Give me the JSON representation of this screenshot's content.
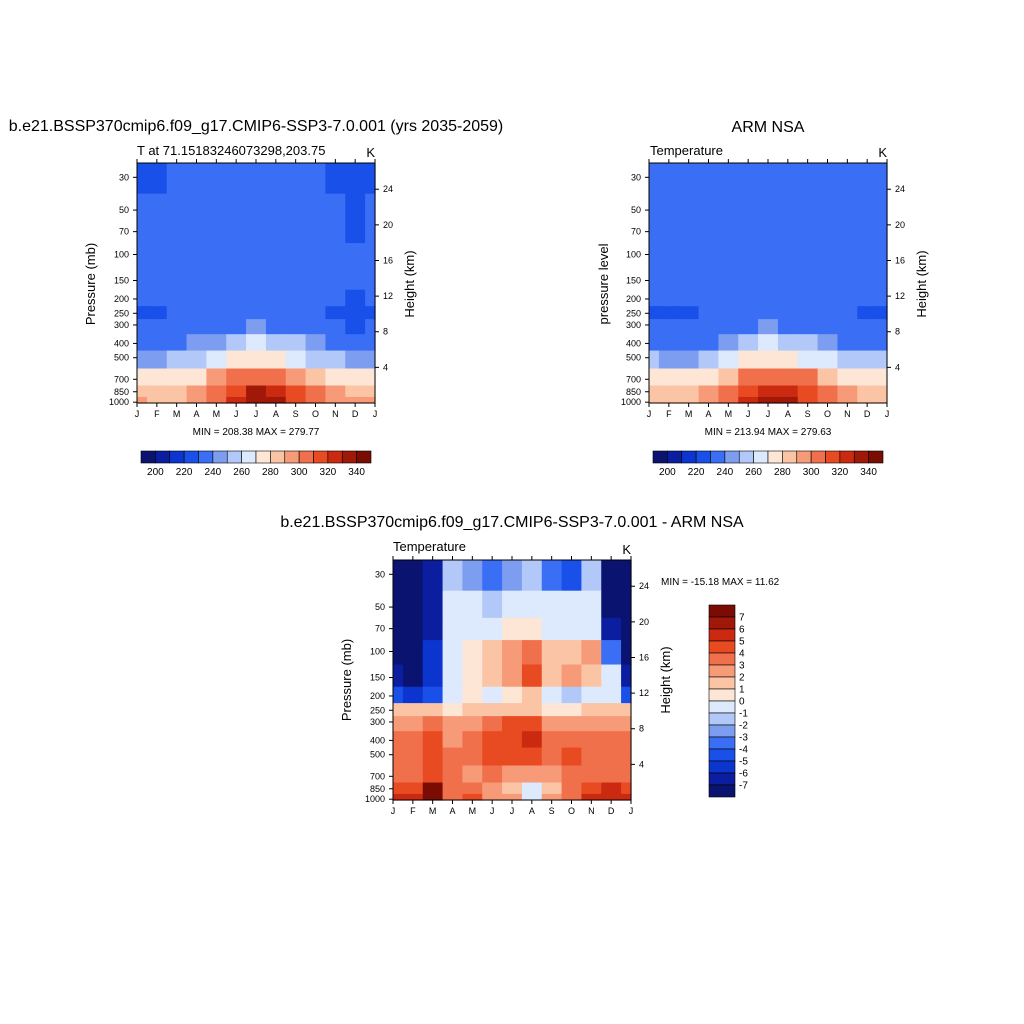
{
  "months": [
    "J",
    "F",
    "M",
    "A",
    "M",
    "J",
    "J",
    "A",
    "S",
    "O",
    "N",
    "D",
    "J"
  ],
  "pressure_ticks": [
    30,
    50,
    70,
    100,
    150,
    200,
    250,
    300,
    400,
    500,
    700,
    850,
    1000
  ],
  "height_ticks": [
    4,
    8,
    12,
    16,
    20,
    24
  ],
  "colors": {
    "abs_scale": [
      "#0a1470",
      "#0b1ea0",
      "#0c35d0",
      "#1a50ea",
      "#3a6ef4",
      "#7d9ef0",
      "#b2c8f8",
      "#dde9fc",
      "#fde6d6",
      "#fbc4a4",
      "#f79a78",
      "#f0704c",
      "#e84a22",
      "#cc2a10",
      "#a01808",
      "#7a0c04"
    ],
    "diff_scale": [
      "#0a1470",
      "#0b1ea0",
      "#0c35d0",
      "#1a50ea",
      "#3a6ef4",
      "#7d9ef0",
      "#b2c8f8",
      "#dde9fc",
      "#fde6d6",
      "#fbc4a4",
      "#f79a78",
      "#f0704c",
      "#e84a22",
      "#cc2a10",
      "#a01808",
      "#7a0c04"
    ]
  },
  "panels": {
    "model": {
      "title": "b.e21.BSSP370cmip6.f09_g17.CMIP6-SSP3-7.0.001 (yrs 2035-2059)",
      "left_label": "T at 71.15183246073298,203.75",
      "right_label": "K",
      "ylabel": "Pressure (mb)",
      "ylabel_right": "Height (km)",
      "minmax": "MIN = 208.38 MAX = 279.77"
    },
    "obs": {
      "title": "ARM NSA",
      "left_label": "Temperature",
      "right_label": "K",
      "ylabel": "pressure level",
      "ylabel_right": "Height (km)",
      "minmax": "MIN = 213.94 MAX = 279.63"
    },
    "diff": {
      "title": "b.e21.BSSP370cmip6.f09_g17.CMIP6-SSP3-7.0.001 - ARM NSA",
      "left_label": "Temperature",
      "right_label": "K",
      "ylabel": "Pressure (mb)",
      "ylabel_right": "Height (km)",
      "minmax": "MIN = -15.18 MAX =  11.62"
    }
  },
  "colorbars": {
    "abs_labels": [
      "200",
      "220",
      "240",
      "260",
      "280",
      "300",
      "320",
      "340"
    ],
    "diff_labels": [
      "7",
      "6",
      "5",
      "4",
      "3",
      "2",
      "1",
      "0",
      "-1",
      "-2",
      "-3",
      "-4",
      "-5",
      "-6",
      "-7"
    ]
  },
  "chart_data": [
    {
      "type": "heatmap",
      "title": "b.e21.BSSP370cmip6.f09_g17.CMIP6-SSP3-7.0.001 (yrs 2035-2059)",
      "subtitle": "T at 71.15183246073298,203.75",
      "units": "K",
      "ylabel": "Pressure (mb)",
      "ylabel_right": "Height (km)",
      "x": [
        "J",
        "F",
        "M",
        "A",
        "M",
        "J",
        "J",
        "A",
        "S",
        "O",
        "N",
        "D",
        "J"
      ],
      "y": [
        30,
        50,
        70,
        100,
        150,
        200,
        250,
        300,
        400,
        500,
        700,
        850,
        1000
      ],
      "levels": [
        200,
        205,
        210,
        215,
        220,
        225,
        230,
        235,
        240,
        245,
        250,
        255,
        260,
        265,
        270,
        275,
        280
      ],
      "min": 208.38,
      "max": 279.77,
      "values": [
        [
          214,
          214,
          215,
          216,
          217,
          218,
          219,
          219,
          218,
          216,
          214,
          211,
          214
        ],
        [
          215,
          215,
          216,
          217,
          218,
          219,
          220,
          220,
          219,
          218,
          216,
          213,
          215
        ],
        [
          215,
          215,
          216,
          217,
          218,
          220,
          221,
          220,
          219,
          218,
          216,
          214,
          215
        ],
        [
          216,
          216,
          217,
          218,
          219,
          221,
          221,
          221,
          219,
          218,
          217,
          215,
          216
        ],
        [
          216,
          216,
          217,
          218,
          219,
          221,
          221,
          220,
          219,
          217,
          216,
          215,
          216
        ],
        [
          215,
          215,
          216,
          217,
          219,
          221,
          221,
          220,
          218,
          216,
          215,
          214,
          215
        ],
        [
          214,
          214,
          215,
          216,
          219,
          221,
          222,
          221,
          218,
          215,
          214,
          213,
          214
        ],
        [
          215,
          215,
          216,
          217,
          220,
          223,
          225,
          224,
          220,
          217,
          215,
          214,
          215
        ],
        [
          222,
          222,
          223,
          225,
          229,
          233,
          235,
          234,
          230,
          226,
          223,
          222,
          222
        ],
        [
          229,
          229,
          230,
          232,
          236,
          241,
          244,
          243,
          238,
          234,
          231,
          229,
          229
        ],
        [
          241,
          240,
          241,
          244,
          250,
          257,
          261,
          260,
          254,
          248,
          243,
          241,
          241
        ],
        [
          249,
          247,
          248,
          252,
          260,
          269,
          275,
          273,
          265,
          256,
          251,
          249,
          249
        ],
        [
          250,
          247,
          248,
          253,
          263,
          273,
          279,
          276,
          268,
          258,
          252,
          250,
          250
        ]
      ]
    },
    {
      "type": "heatmap",
      "title": "ARM NSA",
      "subtitle": "Temperature",
      "units": "K",
      "ylabel": "pressure level",
      "ylabel_right": "Height (km)",
      "x": [
        "J",
        "F",
        "M",
        "A",
        "M",
        "J",
        "J",
        "A",
        "S",
        "O",
        "N",
        "D",
        "J"
      ],
      "y": [
        30,
        50,
        70,
        100,
        150,
        200,
        250,
        300,
        400,
        500,
        700,
        850,
        1000
      ],
      "levels": [
        200,
        205,
        210,
        215,
        220,
        225,
        230,
        235,
        240,
        245,
        250,
        255,
        260,
        265,
        270,
        275,
        280
      ],
      "min": 213.94,
      "max": 279.63,
      "values": [
        [
          216,
          217,
          218,
          218,
          219,
          220,
          221,
          221,
          220,
          219,
          218,
          217,
          216
        ],
        [
          216,
          217,
          218,
          219,
          219,
          220,
          221,
          221,
          220,
          219,
          218,
          217,
          216
        ],
        [
          216,
          217,
          218,
          219,
          219,
          220,
          221,
          221,
          220,
          219,
          218,
          217,
          216
        ],
        [
          216,
          216,
          217,
          218,
          219,
          220,
          221,
          221,
          220,
          219,
          218,
          217,
          216
        ],
        [
          216,
          216,
          217,
          218,
          219,
          220,
          221,
          221,
          220,
          219,
          218,
          216,
          216
        ],
        [
          215,
          215,
          215,
          216,
          218,
          220,
          221,
          221,
          220,
          218,
          216,
          215,
          215
        ],
        [
          214,
          214,
          214,
          215,
          218,
          221,
          222,
          221,
          219,
          217,
          215,
          214,
          214
        ],
        [
          215,
          215,
          215,
          216,
          219,
          222,
          225,
          224,
          221,
          218,
          216,
          215,
          215
        ],
        [
          222,
          221,
          222,
          224,
          228,
          232,
          235,
          234,
          231,
          227,
          223,
          222,
          222
        ],
        [
          230,
          229,
          229,
          232,
          236,
          241,
          244,
          243,
          239,
          235,
          231,
          230,
          230
        ],
        [
          241,
          240,
          240,
          243,
          249,
          256,
          261,
          260,
          255,
          249,
          244,
          241,
          241
        ],
        [
          248,
          247,
          247,
          251,
          259,
          268,
          274,
          272,
          266,
          258,
          251,
          248,
          248
        ],
        [
          249,
          248,
          248,
          252,
          262,
          272,
          278,
          276,
          269,
          260,
          252,
          249,
          249
        ]
      ]
    },
    {
      "type": "heatmap",
      "title": "b.e21.BSSP370cmip6.f09_g17.CMIP6-SSP3-7.0.001 - ARM NSA",
      "subtitle": "Temperature",
      "units": "K",
      "ylabel": "Pressure (mb)",
      "ylabel_right": "Height (km)",
      "x": [
        "J",
        "F",
        "M",
        "A",
        "M",
        "J",
        "J",
        "A",
        "S",
        "O",
        "N",
        "D",
        "J"
      ],
      "y": [
        30,
        50,
        70,
        100,
        150,
        200,
        250,
        300,
        400,
        500,
        700,
        850,
        1000
      ],
      "levels": [
        -7,
        -6,
        -5,
        -4,
        -3,
        -2,
        -1,
        0,
        1,
        2,
        3,
        4,
        5,
        6,
        7
      ],
      "min": -15.18,
      "max": 11.62,
      "values": [
        [
          -8,
          -8,
          -7,
          -2,
          -3,
          -4,
          -3,
          -2,
          -4,
          -5,
          -2,
          -8,
          -8
        ],
        [
          -8,
          -8,
          -7,
          -1,
          -1,
          -2,
          -1,
          -1,
          -1,
          -1,
          -1,
          -8,
          -8
        ],
        [
          -8,
          -8,
          -7,
          -1,
          -0.5,
          -0.5,
          0.5,
          0.5,
          -0.5,
          -0.5,
          -1,
          -7,
          -8
        ],
        [
          -8,
          -8,
          -6,
          -1,
          0.5,
          1,
          2,
          3,
          1,
          1,
          2,
          -4,
          -8
        ],
        [
          -7,
          -8,
          -6,
          -1,
          0.5,
          1,
          2,
          4,
          1,
          2,
          1,
          -1,
          -7
        ],
        [
          -5,
          -6,
          -5,
          -1,
          0.5,
          -0.5,
          0.5,
          1,
          -1,
          -2,
          -1,
          -0.5,
          -5
        ],
        [
          1,
          1,
          1,
          0.5,
          1,
          1,
          1,
          1,
          0.5,
          0.5,
          1,
          1,
          1
        ],
        [
          2,
          2,
          3,
          2,
          2,
          3,
          4,
          4,
          2,
          2,
          2,
          2,
          2
        ],
        [
          3,
          3,
          4,
          2,
          3,
          4,
          4,
          5,
          3,
          3,
          3,
          3,
          3
        ],
        [
          3,
          3,
          4,
          3,
          3,
          4,
          4,
          4,
          3,
          4,
          3,
          3,
          3
        ],
        [
          3,
          3,
          4,
          3,
          2,
          3,
          2,
          2,
          2,
          3,
          3,
          3,
          3
        ],
        [
          4,
          4,
          7,
          3,
          3,
          2,
          1,
          -1,
          1,
          3,
          4,
          5,
          4
        ],
        [
          5,
          5,
          8,
          3,
          4,
          2,
          2,
          -1,
          2,
          3,
          5,
          5,
          5
        ]
      ]
    }
  ]
}
